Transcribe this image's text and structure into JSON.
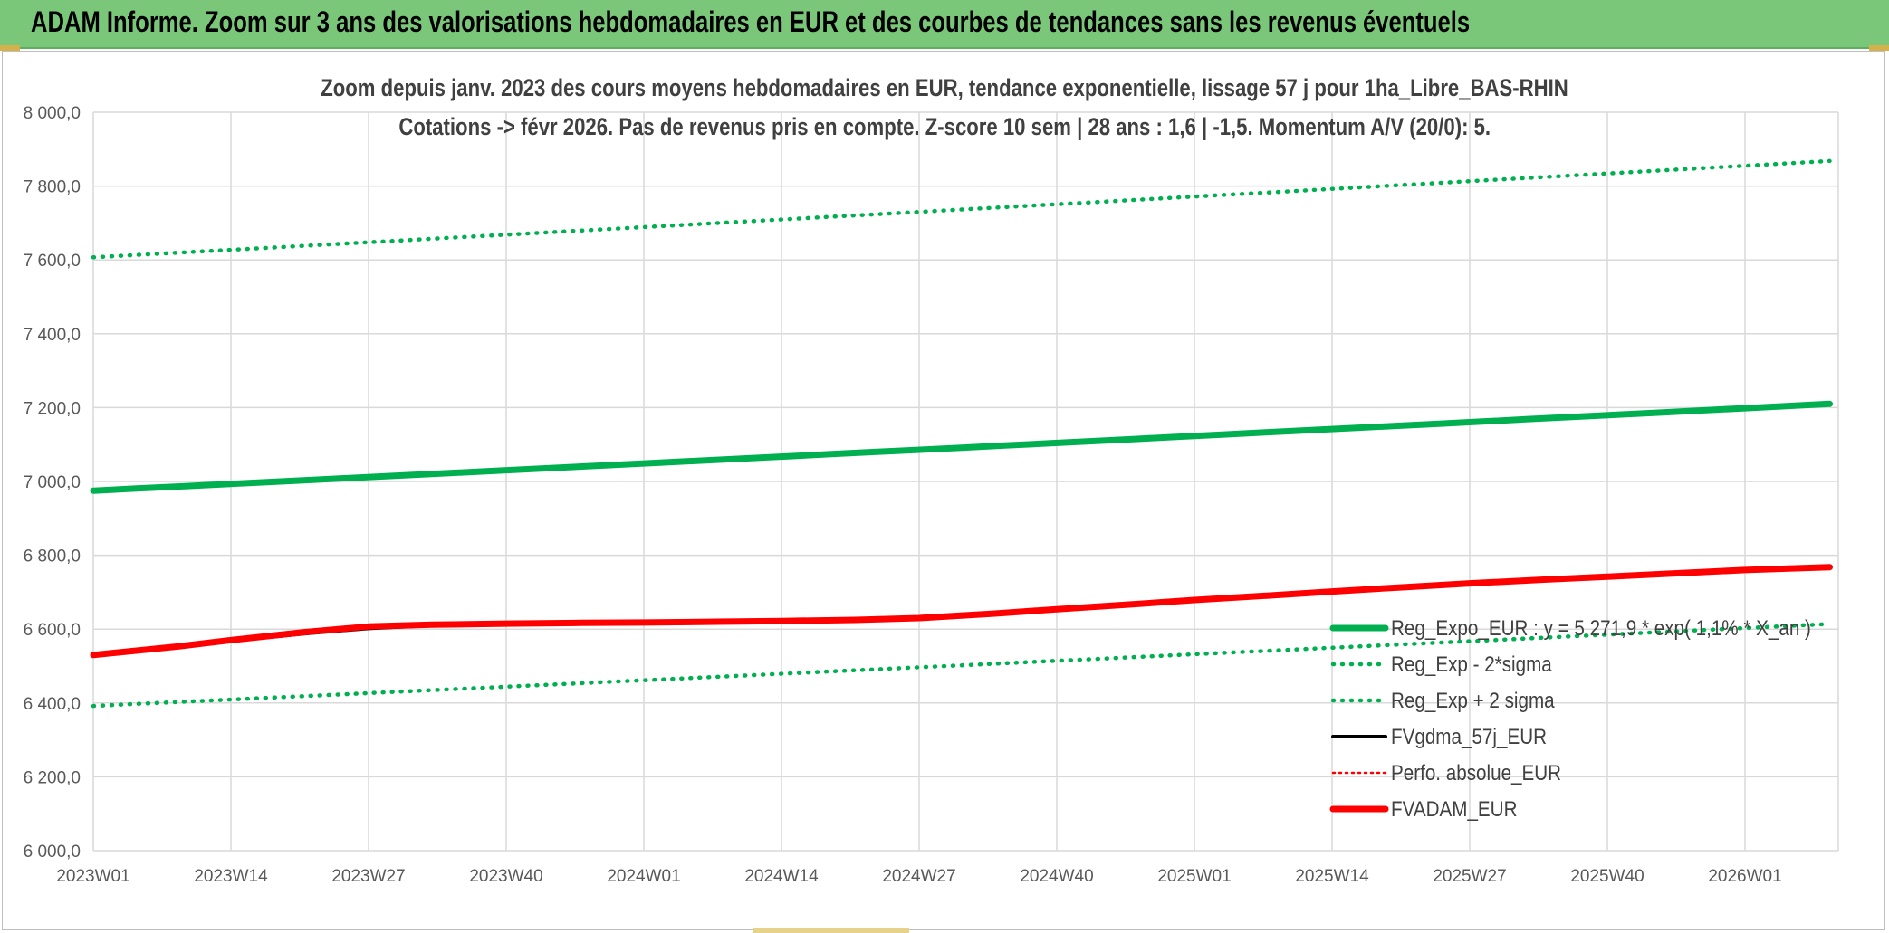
{
  "banner": {
    "title": "ADAM Informe. Zoom sur 3 ans des valorisations hebdomadaires en EUR et des courbes de tendances sans les revenus éventuels"
  },
  "colors": {
    "banner_bg": "#7ac77a",
    "trend_green": "#00b050",
    "fv_red": "#ff0000",
    "fvgdma_black": "#000000",
    "grid": "#d9d9d9"
  },
  "chart_data": {
    "type": "line",
    "title_line1": "Zoom depuis janv. 2023 des cours moyens hebdomadaires en EUR, tendance exponentielle, lissage 57 j pour 1ha_Libre_BAS-RHIN",
    "title_line2": "Cotations -> févr 2026. Pas de revenus pris en compte. Z-score 10 sem | 28 ans : 1,6 | -1,5. Momentum A/V (20/0): 5.",
    "ylim": [
      6000,
      8000
    ],
    "y_ticks": [
      "8 000,0",
      "7 800,0",
      "7 600,0",
      "7 400,0",
      "7 200,0",
      "7 000,0",
      "6 800,0",
      "6 600,0",
      "6 400,0",
      "6 200,0",
      "6 000,0"
    ],
    "y_tick_values": [
      8000,
      7800,
      7600,
      7400,
      7200,
      7000,
      6800,
      6600,
      6400,
      6200,
      6000
    ],
    "x_ticks": [
      "2023W01",
      "2023W14",
      "2023W27",
      "2023W40",
      "2024W01",
      "2024W14",
      "2024W27",
      "2024W40",
      "2025W01",
      "2025W14",
      "2025W27",
      "2025W40",
      "2026W01"
    ],
    "x_tick_weeks": [
      0,
      13,
      26,
      39,
      52,
      65,
      78,
      91,
      104,
      117,
      130,
      143,
      156
    ],
    "x_max_week": 164,
    "series": [
      {
        "name": "Reg_Expo_EUR : y = 5 271,9 * exp( 1,1% * X_an )",
        "style": "solid-thick",
        "color": "#00b050",
        "weeks": [
          0,
          164
        ],
        "values": [
          6975,
          7210
        ],
        "kind": "exp"
      },
      {
        "name": "Reg_Exp - 2*sigma",
        "style": "dotted",
        "color": "#00b050",
        "weeks": [
          0,
          164
        ],
        "values": [
          6392,
          6614
        ],
        "kind": "exp"
      },
      {
        "name": "Reg_Exp + 2 sigma",
        "style": "dotted",
        "color": "#00b050",
        "weeks": [
          0,
          164
        ],
        "values": [
          7607,
          7868
        ],
        "kind": "exp"
      },
      {
        "name": "FVgdma_57j_EUR",
        "style": "solid",
        "color": "#000000",
        "weeks": [
          0,
          8,
          13,
          20,
          26,
          32,
          39,
          46,
          52,
          59,
          65,
          72,
          78,
          85,
          91,
          98,
          104,
          111,
          117,
          124,
          130,
          137,
          143,
          150,
          156,
          164
        ],
        "values": [
          6530,
          6552,
          6568,
          6588,
          6602,
          6610,
          6614,
          6617,
          6618,
          6620,
          6622,
          6626,
          6632,
          6642,
          6654,
          6667,
          6679,
          6691,
          6702,
          6714,
          6724,
          6734,
          6742,
          6752,
          6760,
          6768
        ]
      },
      {
        "name": "Perfo. absolue_EUR",
        "style": "dotted-thin",
        "color": "#ff0000",
        "weeks": [],
        "values": []
      },
      {
        "name": "FVADAM_EUR",
        "style": "solid-thick",
        "color": "#ff0000",
        "weeks": [
          0,
          8,
          13,
          20,
          26,
          32,
          39,
          46,
          52,
          59,
          65,
          72,
          78,
          85,
          91,
          98,
          104,
          111,
          117,
          124,
          130,
          137,
          143,
          150,
          156,
          164
        ],
        "values": [
          6530,
          6553,
          6570,
          6592,
          6607,
          6612,
          6615,
          6617,
          6618,
          6620,
          6622,
          6625,
          6630,
          6642,
          6654,
          6667,
          6679,
          6691,
          6702,
          6714,
          6724,
          6734,
          6742,
          6752,
          6760,
          6768
        ]
      }
    ],
    "legend_position": "bottom-right"
  }
}
